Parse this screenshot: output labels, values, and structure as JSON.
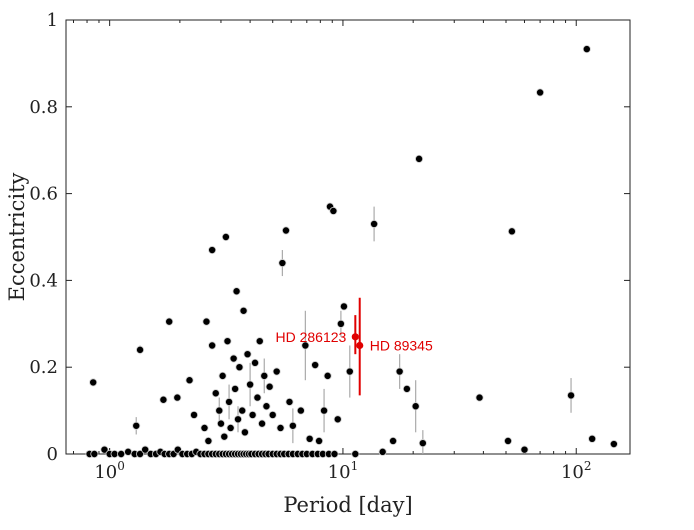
{
  "chart_data": {
    "type": "scatter",
    "title": "",
    "xlabel": "Period [day]",
    "ylabel": "Eccentricity",
    "xscale": "log",
    "xlim": [
      0.65,
      170
    ],
    "ylim": [
      0,
      1
    ],
    "x_ticks": [
      {
        "value": 1,
        "base": "10",
        "exp": "0"
      },
      {
        "value": 10,
        "base": "10",
        "exp": "1"
      },
      {
        "value": 100,
        "base": "10",
        "exp": "2"
      }
    ],
    "y_ticks": [
      {
        "value": 0,
        "label": "0"
      },
      {
        "value": 0.2,
        "label": "0.2"
      },
      {
        "value": 0.4,
        "label": "0.4"
      },
      {
        "value": 0.6,
        "label": "0.6"
      },
      {
        "value": 0.8,
        "label": "0.8"
      },
      {
        "value": 1,
        "label": "1"
      }
    ],
    "grid": false,
    "colors": {
      "catalog": "#000000",
      "errorbar": "#aaaaaa",
      "highlight": "#e00000"
    },
    "series": [
      {
        "points": [
          {
            "x": 0.85,
            "y": 0.165
          },
          {
            "x": 1.35,
            "y": 0.24,
            "err": 0.01
          },
          {
            "x": 1.3,
            "y": 0.065,
            "err": 0.02
          },
          {
            "x": 1.7,
            "y": 0.125
          },
          {
            "x": 1.8,
            "y": 0.305
          },
          {
            "x": 1.95,
            "y": 0.13
          },
          {
            "x": 2.2,
            "y": 0.17
          },
          {
            "x": 2.3,
            "y": 0.09
          },
          {
            "x": 2.6,
            "y": 0.305
          },
          {
            "x": 2.75,
            "y": 0.47
          },
          {
            "x": 3.15,
            "y": 0.5
          },
          {
            "x": 3.5,
            "y": 0.375
          },
          {
            "x": 3.75,
            "y": 0.33
          },
          {
            "x": 2.55,
            "y": 0.06
          },
          {
            "x": 2.65,
            "y": 0.03
          },
          {
            "x": 2.75,
            "y": 0.25
          },
          {
            "x": 2.85,
            "y": 0.14
          },
          {
            "x": 2.95,
            "y": 0.1,
            "err": 0.03
          },
          {
            "x": 3.0,
            "y": 0.07
          },
          {
            "x": 3.05,
            "y": 0.18
          },
          {
            "x": 3.1,
            "y": 0.04
          },
          {
            "x": 3.2,
            "y": 0.26
          },
          {
            "x": 3.25,
            "y": 0.12,
            "err": 0.04
          },
          {
            "x": 3.3,
            "y": 0.06
          },
          {
            "x": 3.4,
            "y": 0.22
          },
          {
            "x": 3.45,
            "y": 0.15
          },
          {
            "x": 3.55,
            "y": 0.08,
            "err": 0.03
          },
          {
            "x": 3.6,
            "y": 0.2
          },
          {
            "x": 3.7,
            "y": 0.1
          },
          {
            "x": 3.8,
            "y": 0.05
          },
          {
            "x": 3.9,
            "y": 0.23
          },
          {
            "x": 4.0,
            "y": 0.16,
            "err": 0.05
          },
          {
            "x": 4.1,
            "y": 0.09
          },
          {
            "x": 4.2,
            "y": 0.21
          },
          {
            "x": 4.3,
            "y": 0.13
          },
          {
            "x": 4.4,
            "y": 0.26
          },
          {
            "x": 4.5,
            "y": 0.07
          },
          {
            "x": 4.6,
            "y": 0.18,
            "err": 0.04
          },
          {
            "x": 4.7,
            "y": 0.11
          },
          {
            "x": 4.85,
            "y": 0.155
          },
          {
            "x": 5.0,
            "y": 0.09
          },
          {
            "x": 5.2,
            "y": 0.19
          },
          {
            "x": 5.4,
            "y": 0.06
          },
          {
            "x": 5.5,
            "y": 0.44,
            "err": 0.03
          },
          {
            "x": 5.7,
            "y": 0.515
          },
          {
            "x": 5.9,
            "y": 0.12
          },
          {
            "x": 6.1,
            "y": 0.065,
            "err": 0.04
          },
          {
            "x": 6.6,
            "y": 0.1
          },
          {
            "x": 6.9,
            "y": 0.25,
            "err": 0.08
          },
          {
            "x": 7.2,
            "y": 0.035
          },
          {
            "x": 7.6,
            "y": 0.205
          },
          {
            "x": 7.9,
            "y": 0.03
          },
          {
            "x": 8.3,
            "y": 0.1,
            "err": 0.05
          },
          {
            "x": 8.6,
            "y": 0.18
          },
          {
            "x": 8.8,
            "y": 0.57
          },
          {
            "x": 9.1,
            "y": 0.56
          },
          {
            "x": 9.5,
            "y": 0.08
          },
          {
            "x": 9.8,
            "y": 0.3,
            "err": 0.03
          },
          {
            "x": 10.1,
            "y": 0.34
          },
          {
            "x": 10.7,
            "y": 0.19,
            "err": 0.06
          },
          {
            "x": 13.6,
            "y": 0.53,
            "err": 0.04
          },
          {
            "x": 14.8,
            "y": 0.005
          },
          {
            "x": 16.4,
            "y": 0.03
          },
          {
            "x": 17.5,
            "y": 0.19,
            "err": 0.04
          },
          {
            "x": 18.8,
            "y": 0.15
          },
          {
            "x": 20.5,
            "y": 0.11,
            "err": 0.06
          },
          {
            "x": 21.2,
            "y": 0.68
          },
          {
            "x": 22.0,
            "y": 0.025,
            "err": 0.03
          },
          {
            "x": 38.5,
            "y": 0.13
          },
          {
            "x": 51.0,
            "y": 0.03
          },
          {
            "x": 53.0,
            "y": 0.513
          },
          {
            "x": 60.0,
            "y": 0.01
          },
          {
            "x": 70.0,
            "y": 0.833
          },
          {
            "x": 95.0,
            "y": 0.135,
            "err": 0.04
          },
          {
            "x": 111.0,
            "y": 0.933
          },
          {
            "x": 117.0,
            "y": 0.035
          },
          {
            "x": 145.0,
            "y": 0.023
          },
          {
            "x": 0.82,
            "y": 0.0
          },
          {
            "x": 0.86,
            "y": 0.0
          },
          {
            "x": 0.95,
            "y": 0.01
          },
          {
            "x": 1.0,
            "y": 0.0
          },
          {
            "x": 1.05,
            "y": 0.0
          },
          {
            "x": 1.12,
            "y": 0.0
          },
          {
            "x": 1.2,
            "y": 0.005
          },
          {
            "x": 1.28,
            "y": 0.0
          },
          {
            "x": 1.35,
            "y": 0.0
          },
          {
            "x": 1.42,
            "y": 0.01
          },
          {
            "x": 1.5,
            "y": 0.0
          },
          {
            "x": 1.58,
            "y": 0.0
          },
          {
            "x": 1.65,
            "y": 0.005
          },
          {
            "x": 1.72,
            "y": 0.0
          },
          {
            "x": 1.8,
            "y": 0.0
          },
          {
            "x": 1.88,
            "y": 0.0
          },
          {
            "x": 1.96,
            "y": 0.01
          },
          {
            "x": 2.05,
            "y": 0.0
          },
          {
            "x": 2.15,
            "y": 0.0
          },
          {
            "x": 2.25,
            "y": 0.0
          },
          {
            "x": 2.35,
            "y": 0.005
          },
          {
            "x": 2.45,
            "y": 0.0
          },
          {
            "x": 2.55,
            "y": 0.0
          },
          {
            "x": 2.65,
            "y": 0.0
          },
          {
            "x": 2.75,
            "y": 0.0
          },
          {
            "x": 2.85,
            "y": 0.0
          },
          {
            "x": 2.95,
            "y": 0.0
          },
          {
            "x": 3.05,
            "y": 0.0
          },
          {
            "x": 3.15,
            "y": 0.0
          },
          {
            "x": 3.25,
            "y": 0.0
          },
          {
            "x": 3.35,
            "y": 0.0
          },
          {
            "x": 3.45,
            "y": 0.0
          },
          {
            "x": 3.55,
            "y": 0.0
          },
          {
            "x": 3.65,
            "y": 0.0
          },
          {
            "x": 3.75,
            "y": 0.0
          },
          {
            "x": 3.85,
            "y": 0.0
          },
          {
            "x": 3.95,
            "y": 0.0
          },
          {
            "x": 4.05,
            "y": 0.0
          },
          {
            "x": 4.2,
            "y": 0.0
          },
          {
            "x": 4.35,
            "y": 0.0
          },
          {
            "x": 4.5,
            "y": 0.0
          },
          {
            "x": 4.65,
            "y": 0.0
          },
          {
            "x": 4.8,
            "y": 0.0
          },
          {
            "x": 5.0,
            "y": 0.0
          },
          {
            "x": 5.2,
            "y": 0.0
          },
          {
            "x": 5.4,
            "y": 0.0
          },
          {
            "x": 5.6,
            "y": 0.0
          },
          {
            "x": 5.85,
            "y": 0.0
          },
          {
            "x": 6.1,
            "y": 0.0
          },
          {
            "x": 6.4,
            "y": 0.0
          },
          {
            "x": 6.7,
            "y": 0.0
          },
          {
            "x": 7.0,
            "y": 0.0
          },
          {
            "x": 7.4,
            "y": 0.0
          },
          {
            "x": 7.8,
            "y": 0.0
          },
          {
            "x": 8.2,
            "y": 0.0
          },
          {
            "x": 8.7,
            "y": 0.0
          },
          {
            "x": 9.2,
            "y": 0.0
          },
          {
            "x": 11.3,
            "y": 0.0
          }
        ]
      },
      {
        "color": "#e00000",
        "points": [
          {
            "x": 11.3,
            "y": 0.27,
            "err_low": 0.04,
            "err_high": 0.05,
            "label": "HD 286123",
            "label_side": "left"
          },
          {
            "x": 11.8,
            "y": 0.25,
            "err_low": 0.115,
            "err_high": 0.11,
            "label": "HD 89345",
            "label_side": "right"
          }
        ]
      }
    ]
  }
}
